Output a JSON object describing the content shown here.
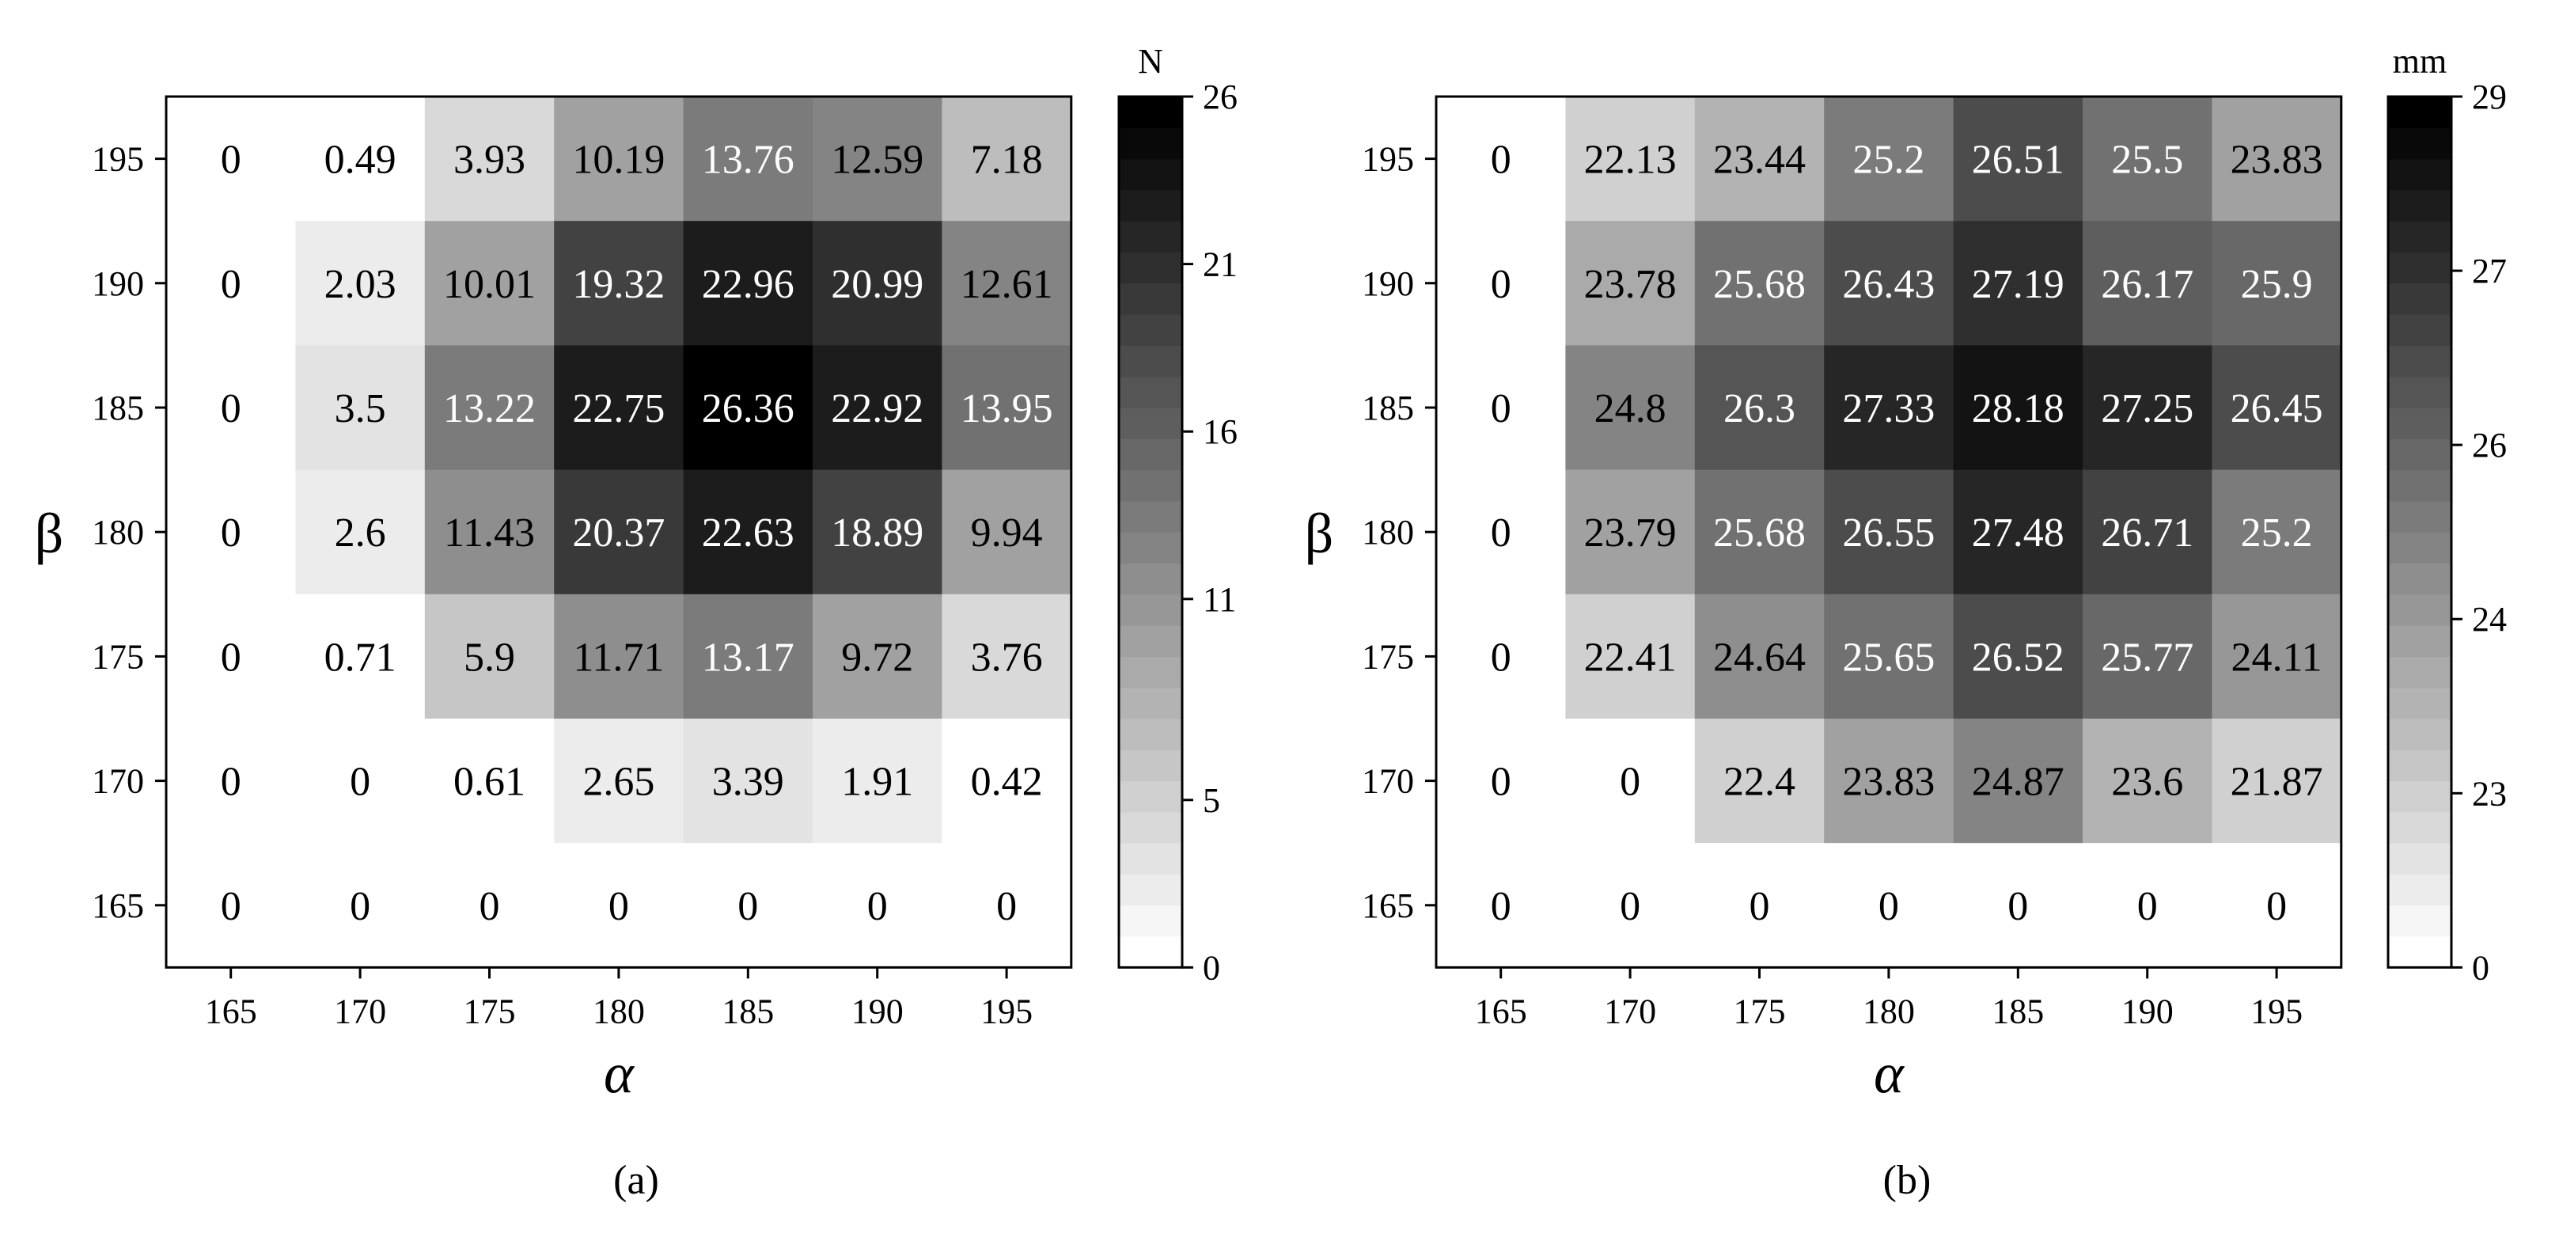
{
  "chart_data": [
    {
      "type": "heatmap",
      "panel_label": "(a)",
      "xlabel": "α",
      "ylabel": "β",
      "x_categories": [
        "165",
        "170",
        "175",
        "180",
        "185",
        "190",
        "195"
      ],
      "y_categories": [
        "195",
        "190",
        "185",
        "180",
        "175",
        "170",
        "165"
      ],
      "values": [
        [
          0,
          0.49,
          3.93,
          10.19,
          13.76,
          12.59,
          7.18
        ],
        [
          0,
          2.03,
          10.01,
          19.32,
          22.96,
          20.99,
          12.61
        ],
        [
          0,
          3.5,
          13.22,
          22.75,
          26.36,
          22.92,
          13.95
        ],
        [
          0,
          2.6,
          11.43,
          20.37,
          22.63,
          18.89,
          9.94
        ],
        [
          0,
          0.71,
          5.9,
          11.71,
          13.17,
          9.72,
          3.76
        ],
        [
          0,
          0,
          0.61,
          2.65,
          3.39,
          1.91,
          0.42
        ],
        [
          0,
          0,
          0,
          0,
          0,
          0,
          0
        ]
      ],
      "value_labels": [
        [
          "0",
          "0.49",
          "3.93",
          "10.19",
          "13.76",
          "12.59",
          "7.18"
        ],
        [
          "0",
          "2.03",
          "10.01",
          "19.32",
          "22.96",
          "20.99",
          "12.61"
        ],
        [
          "0",
          "3.5",
          "13.22",
          "22.75",
          "26.36",
          "22.92",
          "13.95"
        ],
        [
          "0",
          "2.6",
          "11.43",
          "20.37",
          "22.63",
          "18.89",
          "9.94"
        ],
        [
          "0",
          "0.71",
          "5.9",
          "11.71",
          "13.17",
          "9.72",
          "3.76"
        ],
        [
          "0",
          "0",
          "0.61",
          "2.65",
          "3.39",
          "1.91",
          "0.42"
        ],
        [
          "0",
          "0",
          "0",
          "0",
          "0",
          "0",
          "0"
        ]
      ],
      "colorbar": {
        "unit": "N",
        "range": [
          0,
          26
        ],
        "tick_values": [
          0,
          5,
          11,
          16,
          21,
          26
        ],
        "tick_labels": [
          "0",
          "5",
          "11",
          "16",
          "21",
          "26"
        ]
      }
    },
    {
      "type": "heatmap",
      "panel_label": "(b)",
      "xlabel": "α",
      "ylabel": "β",
      "x_categories": [
        "165",
        "170",
        "175",
        "180",
        "185",
        "190",
        "195"
      ],
      "y_categories": [
        "195",
        "190",
        "185",
        "180",
        "175",
        "170",
        "165"
      ],
      "values": [
        [
          0,
          22.13,
          23.44,
          25.2,
          26.51,
          25.5,
          23.83
        ],
        [
          0,
          23.78,
          25.68,
          26.43,
          27.19,
          26.17,
          25.9
        ],
        [
          0,
          24.8,
          26.3,
          27.33,
          28.18,
          27.25,
          26.45
        ],
        [
          0,
          23.79,
          25.68,
          26.55,
          27.48,
          26.71,
          25.2
        ],
        [
          0,
          22.41,
          24.64,
          25.65,
          26.52,
          25.77,
          24.11
        ],
        [
          0,
          0,
          22.4,
          23.83,
          24.87,
          23.6,
          21.87
        ],
        [
          0,
          0,
          0,
          0,
          0,
          0,
          0
        ]
      ],
      "value_labels": [
        [
          "0",
          "22.13",
          "23.44",
          "25.2",
          "26.51",
          "25.5",
          "23.83"
        ],
        [
          "0",
          "23.78",
          "25.68",
          "26.43",
          "27.19",
          "26.17",
          "25.9"
        ],
        [
          "0",
          "24.8",
          "26.3",
          "27.33",
          "28.18",
          "27.25",
          "26.45"
        ],
        [
          "0",
          "23.79",
          "25.68",
          "26.55",
          "27.48",
          "26.71",
          "25.2"
        ],
        [
          "0",
          "22.41",
          "24.64",
          "25.65",
          "26.52",
          "25.77",
          "24.11"
        ],
        [
          "0",
          "0",
          "22.4",
          "23.83",
          "24.87",
          "23.6",
          "21.87"
        ],
        [
          "0",
          "0",
          "0",
          "0",
          "0",
          "0",
          "0"
        ]
      ],
      "colorbar": {
        "unit": "mm",
        "tick_values": [
          0,
          23,
          24,
          26,
          27,
          29
        ],
        "tick_labels": [
          "0",
          "23",
          "24",
          "26",
          "27",
          "29"
        ]
      }
    }
  ]
}
